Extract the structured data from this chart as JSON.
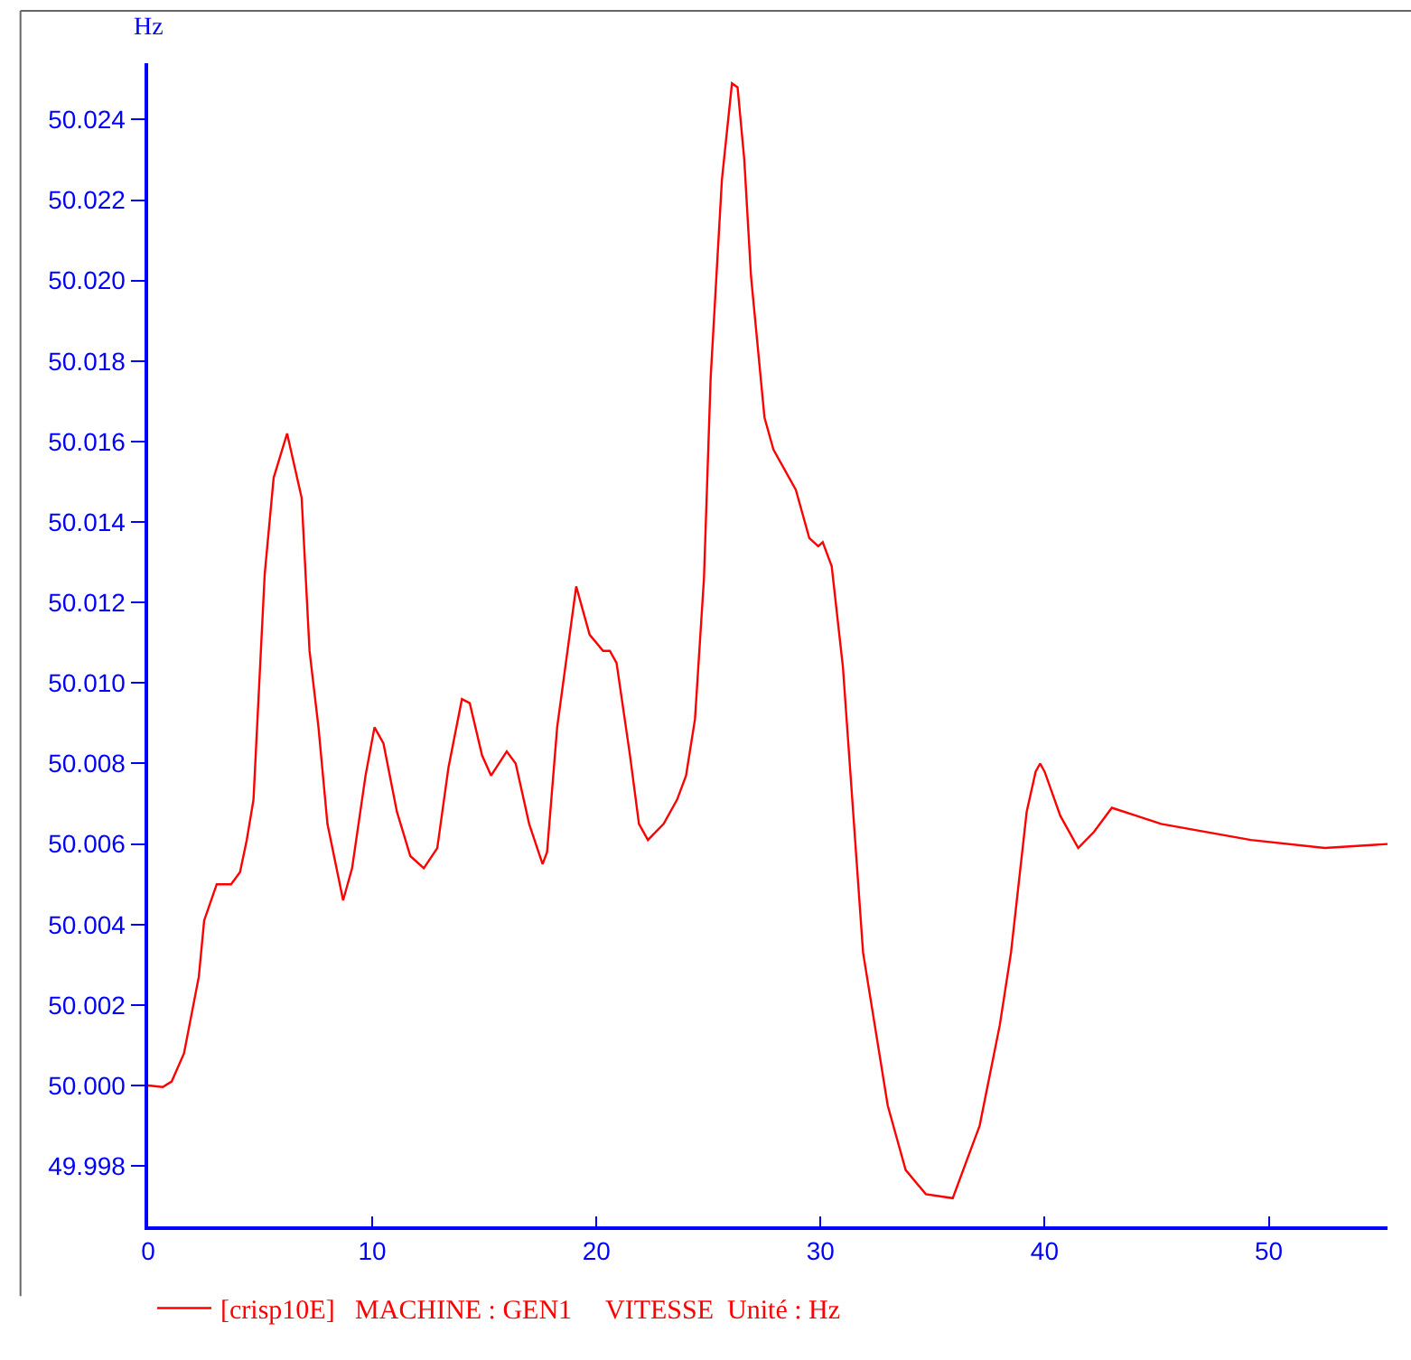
{
  "chart_data": {
    "type": "line",
    "ylabel": "Hz",
    "x": [
      0,
      0.65,
      1.05,
      1.6,
      2.26,
      2.5,
      3.06,
      3.7,
      4.1,
      4.4,
      4.7,
      5.2,
      5.6,
      6.2,
      6.85,
      7.2,
      7.6,
      8.0,
      8.7,
      9.1,
      9.7,
      10.1,
      10.5,
      11.1,
      11.7,
      12.3,
      12.9,
      13.4,
      14.0,
      14.35,
      14.9,
      15.3,
      16.0,
      16.4,
      17.0,
      17.6,
      17.8,
      18.25,
      19.1,
      19.7,
      20.3,
      20.6,
      20.9,
      21.5,
      21.9,
      22.3,
      23.0,
      23.6,
      24.0,
      24.4,
      24.8,
      25.1,
      25.6,
      26.05,
      26.3,
      26.6,
      26.9,
      27.5,
      27.9,
      28.4,
      28.9,
      29.5,
      29.9,
      30.1,
      30.5,
      31.0,
      31.9,
      33.0,
      33.8,
      34.7,
      35.9,
      37.1,
      38.0,
      38.5,
      39.2,
      39.6,
      39.8,
      40.0,
      40.7,
      41.5,
      42.2,
      43.0,
      44.1,
      45.2,
      49.2,
      52.5,
      55.3
    ],
    "series": [
      {
        "name": "[crisp10E]   MACHINE : GEN1     VITESSE  Unité : Hz",
        "color": "#ff0000",
        "values": [
          50.0,
          49.99996,
          50.0001,
          50.0008,
          50.0027,
          50.0041,
          50.005,
          50.005,
          50.0053,
          50.0061,
          50.0071,
          50.0127,
          50.0151,
          50.0162,
          50.0146,
          50.0108,
          50.0089,
          50.0065,
          50.0046,
          50.0054,
          50.0077,
          50.0089,
          50.0085,
          50.0068,
          50.0057,
          50.0054,
          50.0059,
          50.0079,
          50.0096,
          50.0095,
          50.0082,
          50.0077,
          50.0083,
          50.008,
          50.0065,
          50.0055,
          50.0058,
          50.0089,
          50.0124,
          50.0112,
          50.0108,
          50.0108,
          50.0105,
          50.0082,
          50.0065,
          50.0061,
          50.0065,
          50.0071,
          50.0077,
          50.0091,
          50.0126,
          50.0176,
          50.0225,
          50.0249,
          50.0248,
          50.023,
          50.0201,
          50.0166,
          50.0158,
          50.0153,
          50.0148,
          50.0136,
          50.0134,
          50.0135,
          50.0129,
          50.0104,
          50.0033,
          49.9995,
          49.9979,
          49.9973,
          49.9972,
          49.999,
          50.0015,
          50.0033,
          50.0068,
          50.0078,
          50.008,
          50.0078,
          50.0067,
          50.0059,
          50.0063,
          50.0069,
          50.0067,
          50.0065,
          50.0061,
          50.0059,
          50.006
        ]
      }
    ],
    "xlim": [
      0,
      55.3
    ],
    "xticks": [
      0,
      10,
      20,
      30,
      40,
      50
    ],
    "ylim": [
      49.9965,
      50.0254
    ],
    "yticks": [
      {
        "value": 49.998,
        "label": "49.998"
      },
      {
        "value": 50,
        "label": "50.000"
      },
      {
        "value": 50.002,
        "label": "50.002"
      },
      {
        "value": 50.004,
        "label": "50.004"
      },
      {
        "value": 50.006,
        "label": "50.006"
      },
      {
        "value": 50.008,
        "label": "50.008"
      },
      {
        "value": 50.01,
        "label": "50.010"
      },
      {
        "value": 50.012,
        "label": "50.012"
      },
      {
        "value": 50.014,
        "label": "50.014"
      },
      {
        "value": 50.016,
        "label": "50.016"
      },
      {
        "value": 50.018,
        "label": "50.018"
      },
      {
        "value": 50.02,
        "label": "50.020"
      },
      {
        "value": 50.022,
        "label": "50.022"
      },
      {
        "value": 50.024,
        "label": "50.024"
      }
    ],
    "grid": false,
    "legend": "bottom",
    "marker": "none",
    "line_style": "solid"
  }
}
